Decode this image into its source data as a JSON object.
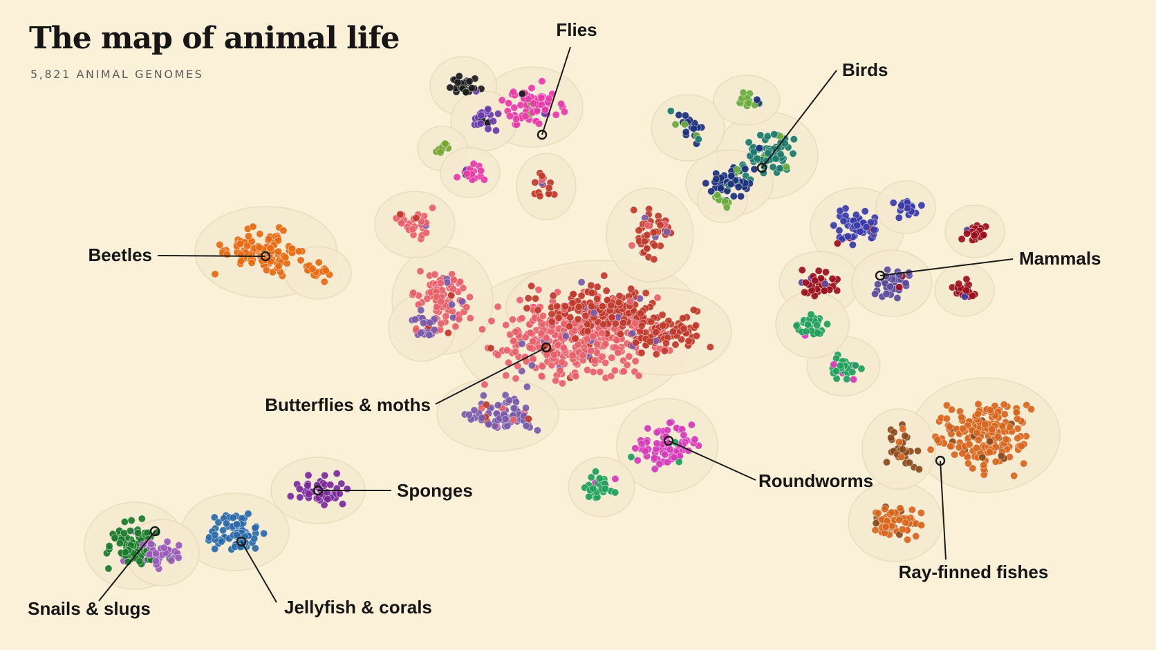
{
  "title": "The map of animal life",
  "subtitle": "5,821 ANIMAL GENOMES",
  "chart_data": {
    "type": "scatter",
    "title": "The map of animal life",
    "subtitle": "5,821 ANIMAL GENOMES",
    "legend": "none",
    "grid": false,
    "clusters": [
      {
        "label": "Flies",
        "colors": [
          "#e83aa8",
          "#1b1b1b",
          "#6a3aa8",
          "#77a52e"
        ]
      },
      {
        "label": "Birds",
        "colors": [
          "#1c7a6a",
          "#1c2f7a",
          "#6aab3c"
        ]
      },
      {
        "label": "Mammals",
        "colors": [
          "#3a3aa8",
          "#9a0f1c",
          "#5a4a9a"
        ]
      },
      {
        "label": "Beetles",
        "colors": [
          "#e86a10"
        ]
      },
      {
        "label": "Butterflies & moths",
        "colors": [
          "#e8606a",
          "#c0392b",
          "#7a5aa8"
        ]
      },
      {
        "label": "Roundworms",
        "colors": [
          "#d63ab8",
          "#1fa05a"
        ]
      },
      {
        "label": "Ray-finned fishes",
        "colors": [
          "#d8661c",
          "#8a4a1a"
        ]
      },
      {
        "label": "Sponges",
        "colors": [
          "#7a2a9a"
        ]
      },
      {
        "label": "Jellyfish & corals",
        "colors": [
          "#2a6aa8"
        ]
      },
      {
        "label": "Snails & slugs",
        "colors": [
          "#1a7a2a",
          "#9a5ab8"
        ]
      }
    ]
  }
}
